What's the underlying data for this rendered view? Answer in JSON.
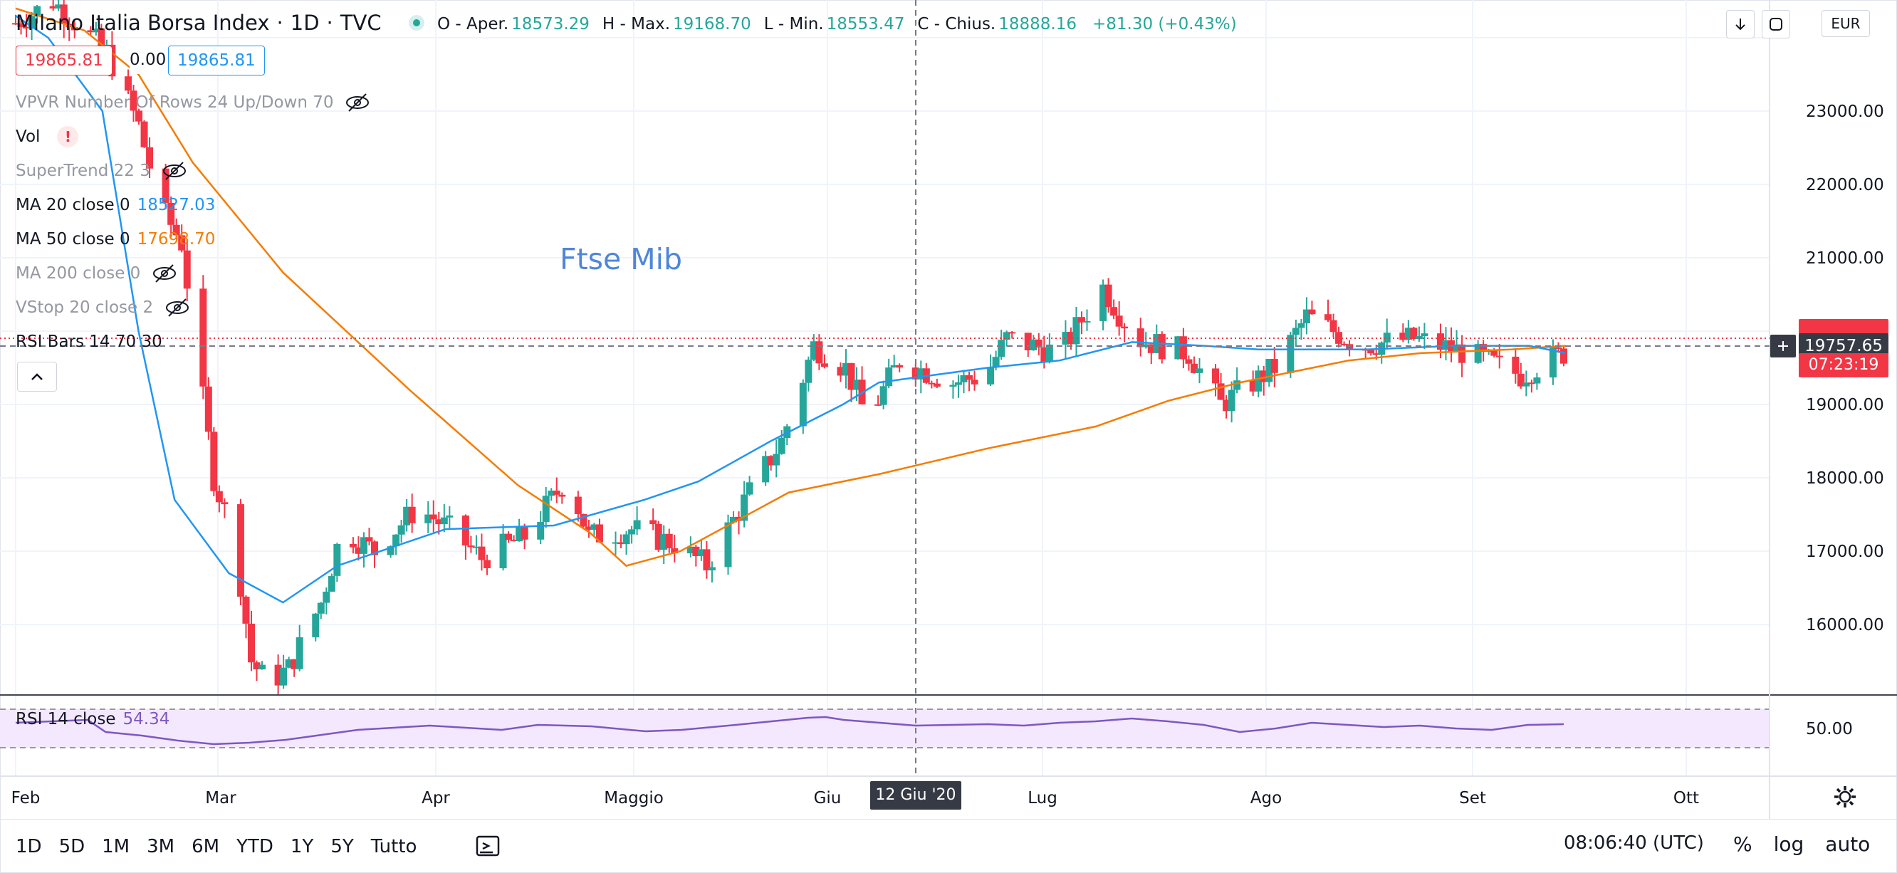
{
  "header": {
    "symbol": "Milano Italia Borsa Index",
    "sep1": "·",
    "interval": "1D",
    "sep2": "·",
    "source": "TVC",
    "ohlc": {
      "open_label": "O - Aper.",
      "open": "18573.29",
      "high_label": "H - Max.",
      "high": "19168.70",
      "low_label": "L - Min.",
      "low": "18553.47",
      "close_label": "C - Chius.",
      "close": "18888.16",
      "change": "+81.30 (+0.43%)"
    }
  },
  "price_boxes": {
    "bid": "19865.81",
    "spread": "0.00",
    "ask": "19865.81"
  },
  "indicators": [
    {
      "label": "VPVR Number Of Rows 24 Up/Down 70",
      "hidden": true
    },
    {
      "label": "Vol",
      "warning": "!"
    },
    {
      "label": "SuperTrend 22 3",
      "hidden": true
    },
    {
      "label": "MA 20 close 0",
      "value": "18527.03",
      "color": "#2196f3"
    },
    {
      "label": "MA 50 close 0",
      "value": "17698.70",
      "color": "#f57c00"
    },
    {
      "label": "MA 200 close 0",
      "hidden": true
    },
    {
      "label": "VStop 20 close 2",
      "hidden": true
    },
    {
      "label": "RSI Bars 14 70 30"
    }
  ],
  "annotation": "Ftse Mib",
  "top_right": {
    "currency": "EUR",
    "download_icon": "arrow-down-icon",
    "fullscreen_icon": "fullscreen-icon"
  },
  "rsi": {
    "label": "RSI 14 close",
    "value": "54.34",
    "axis_label": "50.00",
    "color": "#7e57c2"
  },
  "crosshair": {
    "date": "12 Giu '20",
    "price": "19757.65"
  },
  "countdown": "07:23:19",
  "time_axis": [
    "Feb",
    "Mar",
    "Apr",
    "Maggio",
    "Giu",
    "Lug",
    "Ago",
    "Set",
    "Ott"
  ],
  "price_axis": [
    "23000.00",
    "22000.00",
    "21000.00",
    "20000.00",
    "19000.00",
    "18000.00",
    "17000.00",
    "16000.00"
  ],
  "toolbar": {
    "ranges": [
      "1D",
      "5D",
      "1M",
      "3M",
      "6M",
      "YTD",
      "1Y",
      "5Y",
      "Tutto"
    ],
    "clock": "08:06:40 (UTC)",
    "scale_options": [
      "%",
      "log",
      "auto"
    ]
  },
  "colors": {
    "up": "#26a69a",
    "down": "#f23645",
    "ma20": "#2196f3",
    "ma50": "#f57c00",
    "rsi": "#7e57c2"
  },
  "chart_data": {
    "type": "candlestick",
    "x_axis_labels": [
      "Feb",
      "Mar",
      "Apr",
      "Maggio",
      "Giu",
      "Lug",
      "Ago",
      "Set",
      "Ott"
    ],
    "y_axis_labels": [
      "23000.00",
      "22000.00",
      "21000.00",
      "20000.00",
      "19000.00",
      "18000.00",
      "17000.00",
      "16000.00"
    ],
    "ylim": [
      15000,
      24100
    ],
    "series": [
      {
        "name": "MA 20 close 0",
        "type": "line",
        "color": "#2196f3",
        "points": [
          [
            1,
            24300
          ],
          [
            10,
            24000
          ],
          [
            25,
            23000
          ],
          [
            35,
            20000
          ],
          [
            45,
            17700
          ],
          [
            60,
            16700
          ],
          [
            75,
            16300
          ],
          [
            90,
            16800
          ],
          [
            120,
            17300
          ],
          [
            150,
            17350
          ],
          [
            175,
            17700
          ],
          [
            190,
            17950
          ],
          [
            210,
            18500
          ],
          [
            230,
            19000
          ],
          [
            240,
            19300
          ],
          [
            255,
            19400
          ],
          [
            270,
            19500
          ],
          [
            290,
            19600
          ],
          [
            310,
            19850
          ],
          [
            330,
            19800
          ],
          [
            345,
            19750
          ],
          [
            375,
            19750
          ],
          [
            400,
            19800
          ],
          [
            420,
            19800
          ],
          [
            430,
            19700
          ]
        ]
      },
      {
        "name": "MA 50 close 0",
        "type": "line",
        "color": "#f57c00",
        "points": [
          [
            1,
            24400
          ],
          [
            20,
            24100
          ],
          [
            35,
            23500
          ],
          [
            50,
            22300
          ],
          [
            75,
            20800
          ],
          [
            110,
            19200
          ],
          [
            140,
            17900
          ],
          [
            160,
            17250
          ],
          [
            170,
            16800
          ],
          [
            185,
            17000
          ],
          [
            200,
            17400
          ],
          [
            215,
            17800
          ],
          [
            240,
            18050
          ],
          [
            270,
            18400
          ],
          [
            300,
            18700
          ],
          [
            320,
            19050
          ],
          [
            340,
            19300
          ],
          [
            355,
            19450
          ],
          [
            370,
            19600
          ],
          [
            390,
            19700
          ],
          [
            415,
            19750
          ],
          [
            430,
            19800
          ]
        ]
      },
      {
        "name": "RSI 14 close",
        "type": "line",
        "color": "#7e57c2",
        "points": [
          [
            0,
            58
          ],
          [
            10,
            60
          ],
          [
            20,
            62
          ],
          [
            25,
            45
          ],
          [
            35,
            40
          ],
          [
            45,
            33
          ],
          [
            55,
            28
          ],
          [
            65,
            30
          ],
          [
            75,
            34
          ],
          [
            95,
            48
          ],
          [
            115,
            54
          ],
          [
            135,
            48
          ],
          [
            145,
            55
          ],
          [
            160,
            53
          ],
          [
            175,
            46
          ],
          [
            185,
            48
          ],
          [
            200,
            55
          ],
          [
            210,
            60
          ],
          [
            220,
            65
          ],
          [
            225,
            66
          ],
          [
            230,
            62
          ],
          [
            240,
            58
          ],
          [
            250,
            54
          ],
          [
            260,
            55
          ],
          [
            270,
            56
          ],
          [
            280,
            54
          ],
          [
            290,
            58
          ],
          [
            300,
            60
          ],
          [
            310,
            64
          ],
          [
            320,
            60
          ],
          [
            330,
            55
          ],
          [
            340,
            45
          ],
          [
            350,
            50
          ],
          [
            360,
            58
          ],
          [
            370,
            55
          ],
          [
            380,
            52
          ],
          [
            390,
            54
          ],
          [
            400,
            50
          ],
          [
            410,
            48
          ],
          [
            420,
            55
          ],
          [
            430,
            56
          ]
        ]
      }
    ],
    "crosshair_price": 19757.65,
    "last_price": 19865.81
  }
}
